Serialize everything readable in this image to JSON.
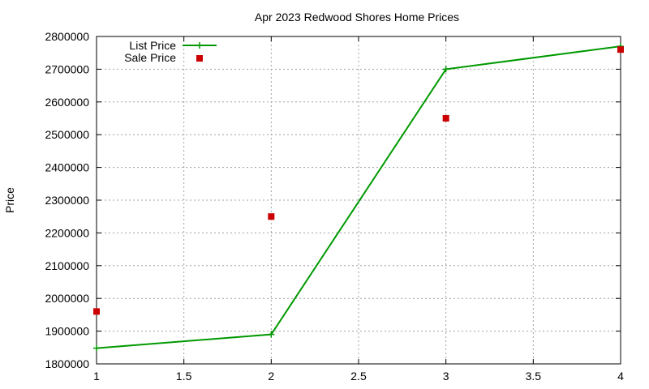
{
  "chart_data": {
    "type": "line",
    "title": "Apr 2023 Redwood Shores Home Prices",
    "xlabel": "",
    "ylabel": "Price",
    "x": [
      1,
      2,
      3,
      4
    ],
    "xlim": [
      1,
      4
    ],
    "ylim": [
      1800000,
      2800000
    ],
    "xticks": [
      "1",
      "1.5",
      "2",
      "2.5",
      "3",
      "3.5",
      "4"
    ],
    "yticks": [
      "1800000",
      "1900000",
      "2000000",
      "2100000",
      "2200000",
      "2300000",
      "2400000",
      "2500000",
      "2600000",
      "2700000",
      "2800000"
    ],
    "grid": true,
    "legend_position": "top-left",
    "series": [
      {
        "name": "List Price",
        "style": "line-with-plus-markers",
        "color": "#009900",
        "values": [
          1848000,
          1890000,
          2700000,
          2770000
        ]
      },
      {
        "name": "Sale Price",
        "style": "square-markers",
        "color": "#cc0000",
        "values": [
          1960000,
          2250000,
          2550000,
          2760000
        ]
      }
    ]
  }
}
